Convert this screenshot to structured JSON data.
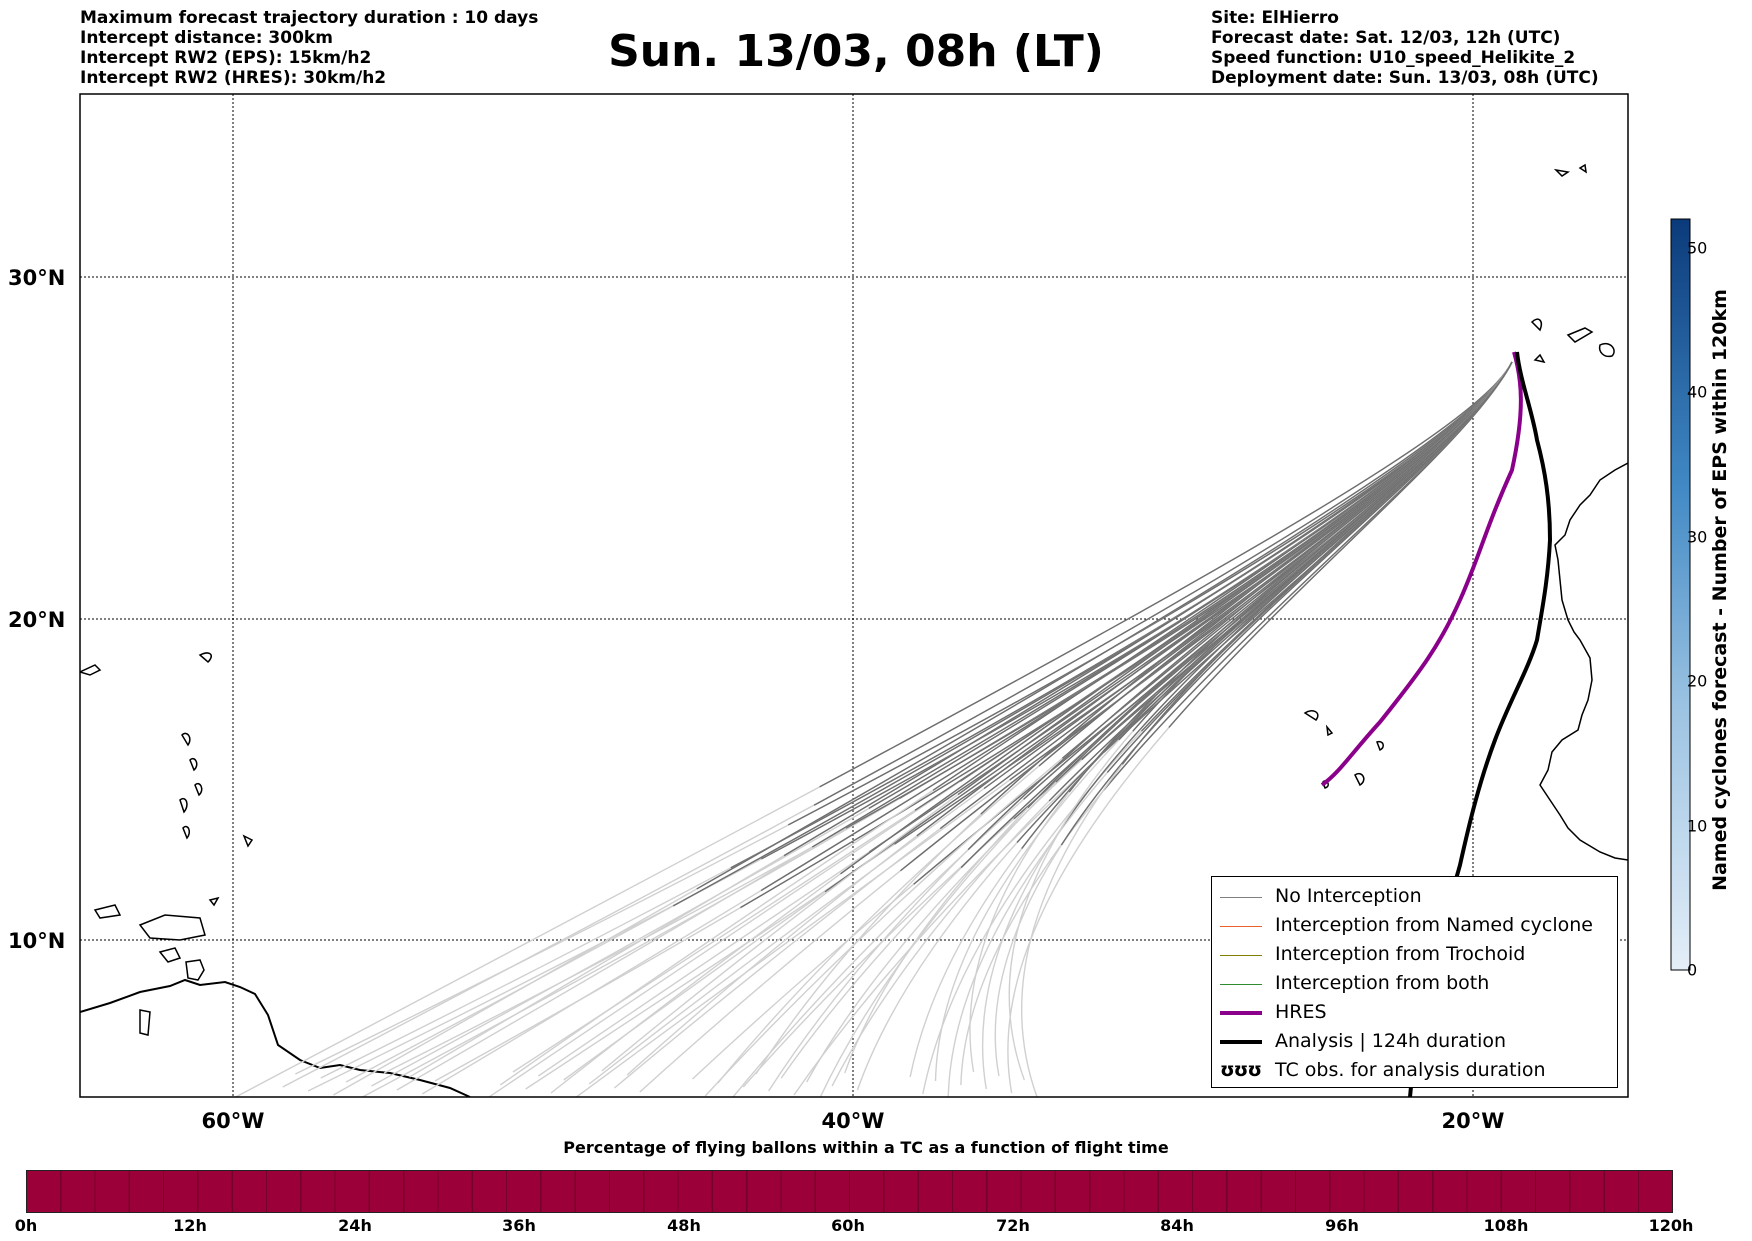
{
  "header": {
    "left_lines": [
      "Maximum forecast trajectory duration : 10 days",
      "Intercept distance: 300km",
      "Intercept RW2 (EPS):  15km/h2",
      "Intercept RW2 (HRES): 30km/h2"
    ],
    "title": "Sun. 13/03, 08h (LT)",
    "right_lines": [
      "Site: ElHierro",
      "Forecast date: Sat. 12/03, 12h (UTC)",
      "Speed function: U10_speed_Helikite_2",
      "Deployment date: Sun. 13/03, 08h (UTC)"
    ]
  },
  "map": {
    "lat_labels": [
      "30°N",
      "20°N",
      "10°N"
    ],
    "lon_labels": [
      "60°W",
      "40°W",
      "20°W"
    ],
    "colors": {
      "trajectory_late": "#6e6e6e",
      "trajectory_early": "#d0d0d0",
      "hres": "#8b008b",
      "analysis": "#000000",
      "coastline": "#000000"
    }
  },
  "legend": {
    "items": [
      {
        "label": "No Interception",
        "color": "#808080",
        "style": "thin"
      },
      {
        "label": "Interception from Named cyclone",
        "color": "#e8602c",
        "style": "thin"
      },
      {
        "label": "Interception from Trochoid",
        "color": "#808000",
        "style": "thin"
      },
      {
        "label": "Interception from both",
        "color": "#2e8b2e",
        "style": "thin"
      },
      {
        "label": "HRES",
        "color": "#8b008b",
        "style": "thick"
      },
      {
        "label": "Analysis | 124h duration",
        "color": "#000000",
        "style": "thick"
      },
      {
        "label": "TC obs. for analysis duration",
        "icon": "cyclone-symbols-icon",
        "symbol": "ʊʊʊ"
      }
    ]
  },
  "colorbar": {
    "title": "Named cyclones forecast - Number of EPS within 120km",
    "ticks": [
      "0",
      "10",
      "20",
      "30",
      "40",
      "50"
    ],
    "range": [
      0,
      52
    ],
    "color_low": "#e4eef8",
    "color_high": "#0b3a7a"
  },
  "percentage_bar": {
    "title": "Percentage of flying ballons within a TC as a function of flight time",
    "ticks": [
      "0h",
      "12h",
      "24h",
      "36h",
      "48h",
      "60h",
      "72h",
      "84h",
      "96h",
      "108h",
      "120h"
    ],
    "fill_color": "#9b0039"
  }
}
